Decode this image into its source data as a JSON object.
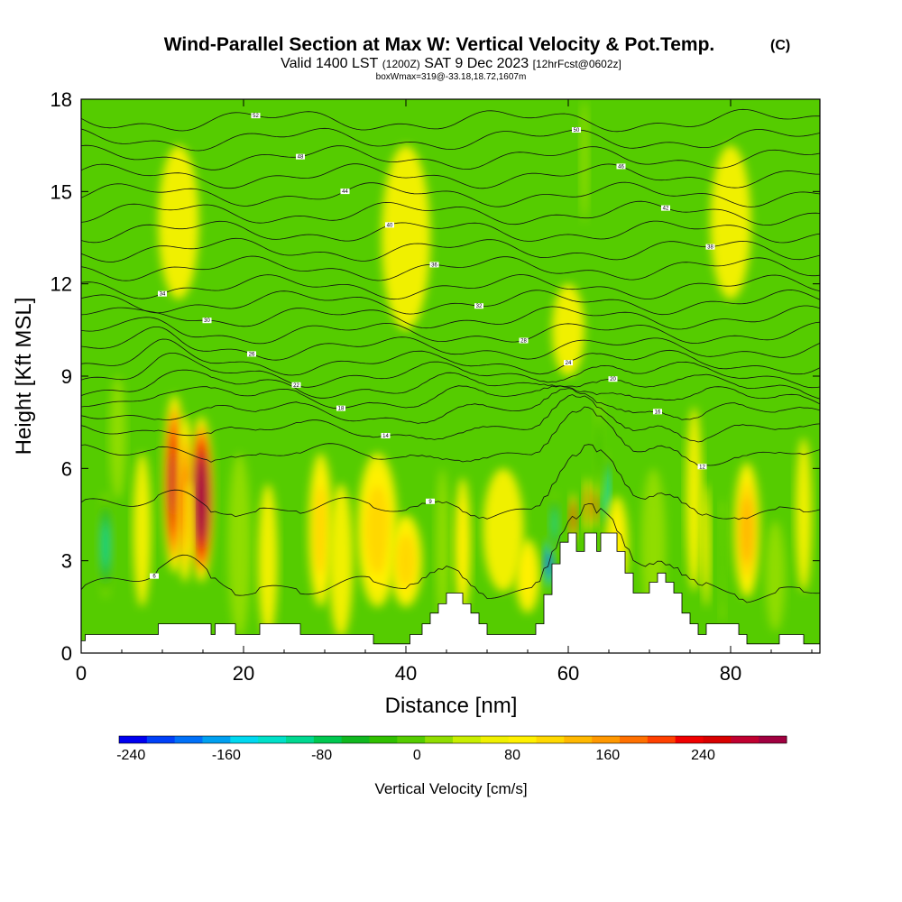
{
  "header": {
    "title": "Wind-Parallel Section at Max W: Vertical Velocity & Pot.Temp.",
    "copyright": "(C)",
    "valid_prefix": "Valid 1400 LST",
    "valid_utc": "(1200Z)",
    "valid_date": "SAT 9 Dec 2023",
    "forecast": "[12hrFcst@0602z]",
    "box_info": "boxWmax=319@-33.18,18.72,1607m"
  },
  "colors": {
    "frame": "#000000",
    "terrain": "#ffffff",
    "field_background": "#55cc00",
    "palette": [
      "#0000f0",
      "#0040f8",
      "#0070f8",
      "#00a0f0",
      "#00d8f0",
      "#00e0c8",
      "#00d890",
      "#00c850",
      "#10b820",
      "#30c000",
      "#55cc00",
      "#90dd00",
      "#c8ee00",
      "#f0f000",
      "#fff000",
      "#ffd800",
      "#ffb800",
      "#ff9800",
      "#ff7000",
      "#ff4000",
      "#f00000",
      "#d80000",
      "#c00030",
      "#a00040"
    ]
  },
  "chart_data": {
    "type": "heatmap",
    "title": "Wind-Parallel Section at Max W: Vertical Velocity & Pot.Temp.",
    "xlabel": "Distance [nm]",
    "ylabel": "Height [Kft MSL]",
    "xlim": [
      0,
      91
    ],
    "ylim": [
      0,
      18
    ],
    "x_ticks": [
      0,
      20,
      40,
      60,
      80
    ],
    "y_ticks": [
      0,
      3,
      6,
      9,
      12,
      15,
      18
    ],
    "colorbar": {
      "title": "Vertical Velocity [cm/s]",
      "min": -250,
      "max": 310,
      "step": 20,
      "tick_values": [
        -240,
        -160,
        -80,
        0,
        80,
        160,
        240
      ],
      "tick_labels": [
        "-240",
        "-160",
        "-80",
        "0",
        "80",
        "160",
        "240"
      ]
    },
    "terrain_profile": [
      [
        0,
        0.4
      ],
      [
        0.5,
        0.4
      ],
      [
        0.5,
        0.6
      ],
      [
        3,
        0.6
      ],
      [
        3,
        0.6
      ],
      [
        9.5,
        0.6
      ],
      [
        9.5,
        0.95
      ],
      [
        16,
        0.95
      ],
      [
        16,
        0.6
      ],
      [
        16.5,
        0.6
      ],
      [
        16.5,
        0.95
      ],
      [
        19,
        0.95
      ],
      [
        19,
        0.6
      ],
      [
        20.5,
        0.6
      ],
      [
        20.5,
        0.6
      ],
      [
        22,
        0.6
      ],
      [
        22,
        0.95
      ],
      [
        27,
        0.95
      ],
      [
        27,
        0.6
      ],
      [
        36,
        0.6
      ],
      [
        36,
        0.3
      ],
      [
        40.5,
        0.3
      ],
      [
        40.5,
        0.6
      ],
      [
        42,
        0.6
      ],
      [
        42,
        0.95
      ],
      [
        43,
        0.95
      ],
      [
        43,
        1.3
      ],
      [
        44,
        1.3
      ],
      [
        44,
        1.6
      ],
      [
        45,
        1.6
      ],
      [
        45,
        1.95
      ],
      [
        47,
        1.95
      ],
      [
        47,
        1.6
      ],
      [
        48,
        1.6
      ],
      [
        48,
        1.3
      ],
      [
        49,
        1.3
      ],
      [
        49,
        0.95
      ],
      [
        50,
        0.95
      ],
      [
        50,
        0.6
      ],
      [
        56,
        0.6
      ],
      [
        56,
        0.95
      ],
      [
        57,
        0.95
      ],
      [
        57,
        1.9
      ],
      [
        58,
        1.9
      ],
      [
        58,
        2.9
      ],
      [
        59,
        2.9
      ],
      [
        59,
        3.6
      ],
      [
        60,
        3.6
      ],
      [
        60,
        3.9
      ],
      [
        61,
        3.9
      ],
      [
        61,
        3.3
      ],
      [
        62,
        3.3
      ],
      [
        62,
        3.9
      ],
      [
        63.5,
        3.9
      ],
      [
        63.5,
        3.3
      ],
      [
        64,
        3.3
      ],
      [
        64,
        3.9
      ],
      [
        66,
        3.9
      ],
      [
        66,
        3.3
      ],
      [
        67,
        3.3
      ],
      [
        67,
        2.6
      ],
      [
        68,
        2.6
      ],
      [
        68,
        1.95
      ],
      [
        70,
        1.95
      ],
      [
        70,
        2.3
      ],
      [
        71,
        2.3
      ],
      [
        71,
        2.6
      ],
      [
        72,
        2.6
      ],
      [
        72,
        2.3
      ],
      [
        73,
        2.3
      ],
      [
        73,
        1.95
      ],
      [
        74,
        1.95
      ],
      [
        74,
        1.3
      ],
      [
        75,
        1.3
      ],
      [
        75,
        0.95
      ],
      [
        76,
        0.95
      ],
      [
        76,
        0.6
      ],
      [
        77,
        0.6
      ],
      [
        77,
        0.95
      ],
      [
        81,
        0.95
      ],
      [
        81,
        0.6
      ],
      [
        82,
        0.6
      ],
      [
        82,
        0.3
      ],
      [
        86,
        0.3
      ],
      [
        86,
        0.6
      ],
      [
        89,
        0.6
      ],
      [
        89,
        0.3
      ],
      [
        91,
        0.3
      ]
    ],
    "vertical_velocity_cells": [
      {
        "x": 3,
        "y": 3.5,
        "sx": 0.9,
        "sy": 1.7,
        "w": -120
      },
      {
        "x": 11.5,
        "y": 5.5,
        "sx": 1.4,
        "sy": 2.9,
        "w": 200
      },
      {
        "x": 12.8,
        "y": 5.0,
        "sx": 1.1,
        "sy": 2.7,
        "w": 120
      },
      {
        "x": 14.8,
        "y": 5.0,
        "sx": 1.5,
        "sy": 2.7,
        "w": 260
      },
      {
        "x": 13.3,
        "y": 4.3,
        "sx": 0.5,
        "sy": 1.3,
        "w": 60
      },
      {
        "x": 4.5,
        "y": 7.0,
        "sx": 1.0,
        "sy": 2.0,
        "w": -20
      },
      {
        "x": 7.5,
        "y": 4.0,
        "sx": 1.1,
        "sy": 2.5,
        "w": 20
      },
      {
        "x": 19.5,
        "y": 3.5,
        "sx": 1.4,
        "sy": 3.0,
        "w": -20
      },
      {
        "x": 23.0,
        "y": 3.0,
        "sx": 1.2,
        "sy": 2.5,
        "w": 20
      },
      {
        "x": 29.5,
        "y": 4.0,
        "sx": 1.5,
        "sy": 2.5,
        "w": 50
      },
      {
        "x": 32.0,
        "y": 3.0,
        "sx": 1.5,
        "sy": 2.5,
        "w": 20
      },
      {
        "x": 36.5,
        "y": 4.0,
        "sx": 2.5,
        "sy": 2.5,
        "w": 50
      },
      {
        "x": 40.0,
        "y": 3.0,
        "sx": 2.0,
        "sy": 1.5,
        "w": 55
      },
      {
        "x": 44.5,
        "y": 3.5,
        "sx": 0.8,
        "sy": 2.5,
        "w": -20
      },
      {
        "x": 47.0,
        "y": 3.5,
        "sx": 1.0,
        "sy": 2.2,
        "w": 30
      },
      {
        "x": 52.0,
        "y": 4.0,
        "sx": 2.5,
        "sy": 2.0,
        "w": 20
      },
      {
        "x": 55.0,
        "y": 2.5,
        "sx": 1.5,
        "sy": 1.2,
        "w": 40
      },
      {
        "x": 57.6,
        "y": 2.9,
        "sx": 0.6,
        "sy": 0.9,
        "w": -230
      },
      {
        "x": 58.3,
        "y": 4.2,
        "sx": 0.6,
        "sy": 1.0,
        "w": -120
      },
      {
        "x": 60.6,
        "y": 4.4,
        "sx": 0.45,
        "sy": 0.8,
        "w": 170
      },
      {
        "x": 62.3,
        "y": 4.8,
        "sx": 0.45,
        "sy": 0.9,
        "w": 110
      },
      {
        "x": 63.3,
        "y": 4.8,
        "sx": 0.4,
        "sy": 0.8,
        "w": 150
      },
      {
        "x": 64.7,
        "y": 5.2,
        "sx": 0.5,
        "sy": 1.3,
        "w": -150
      },
      {
        "x": 63.8,
        "y": 6.6,
        "sx": 0.6,
        "sy": 1.6,
        "w": -60
      },
      {
        "x": 66.0,
        "y": 3.5,
        "sx": 1.4,
        "sy": 1.6,
        "w": 30
      },
      {
        "x": 70.5,
        "y": 3.5,
        "sx": 1.5,
        "sy": 2.5,
        "w": -20
      },
      {
        "x": 75.5,
        "y": 5.0,
        "sx": 1.0,
        "sy": 3.0,
        "w": 25
      },
      {
        "x": 77.0,
        "y": 3.5,
        "sx": 0.5,
        "sy": 2.0,
        "w": 40
      },
      {
        "x": 79.0,
        "y": 3.0,
        "sx": 0.4,
        "sy": 2.0,
        "w": -50
      },
      {
        "x": 82.0,
        "y": 4.0,
        "sx": 1.6,
        "sy": 2.2,
        "w": 75
      },
      {
        "x": 85.5,
        "y": 2.5,
        "sx": 1.2,
        "sy": 1.8,
        "w": -25
      },
      {
        "x": 89.0,
        "y": 4.5,
        "sx": 1.0,
        "sy": 2.5,
        "w": 20
      },
      {
        "x": 62.0,
        "y": 16.0,
        "sx": 0.5,
        "sy": 2.0,
        "w": -25
      },
      {
        "x": 40.0,
        "y": 13.5,
        "sx": 3.0,
        "sy": 3.0,
        "w": 15
      },
      {
        "x": 80.0,
        "y": 14.0,
        "sx": 2.5,
        "sy": 2.5,
        "w": 15
      },
      {
        "x": 12.0,
        "y": 14.0,
        "sx": 2.5,
        "sy": 2.5,
        "w": 15
      },
      {
        "x": 60.0,
        "y": 10.5,
        "sx": 2.0,
        "sy": 1.5,
        "w": 20
      }
    ],
    "potential_temperature_isolines": [
      {
        "base_height": 1.9,
        "label": "6"
      },
      {
        "base_height": 4.5,
        "label": "9"
      },
      {
        "base_height": 6.3,
        "label": "12"
      },
      {
        "base_height": 7.1,
        "label": "14"
      },
      {
        "base_height": 7.7,
        "label": "16"
      },
      {
        "base_height": 8.2,
        "label": "18"
      },
      {
        "base_height": 8.6,
        "label": "20"
      },
      {
        "base_height": 9.0,
        "label": "22"
      },
      {
        "base_height": 9.4,
        "label": "24"
      },
      {
        "base_height": 9.9,
        "label": "26"
      },
      {
        "base_height": 10.4,
        "label": "28"
      },
      {
        "base_height": 10.9,
        "label": "30"
      },
      {
        "base_height": 11.4,
        "label": "32"
      },
      {
        "base_height": 11.9,
        "label": "34"
      },
      {
        "base_height": 12.5,
        "label": "36"
      },
      {
        "base_height": 13.1,
        "label": "38"
      },
      {
        "base_height": 13.7,
        "label": "40"
      },
      {
        "base_height": 14.3,
        "label": "42"
      },
      {
        "base_height": 14.9,
        "label": "44"
      },
      {
        "base_height": 15.5,
        "label": "46"
      },
      {
        "base_height": 16.1,
        "label": "48"
      },
      {
        "base_height": 16.7,
        "label": "50"
      },
      {
        "base_height": 17.3,
        "label": "52"
      }
    ]
  }
}
